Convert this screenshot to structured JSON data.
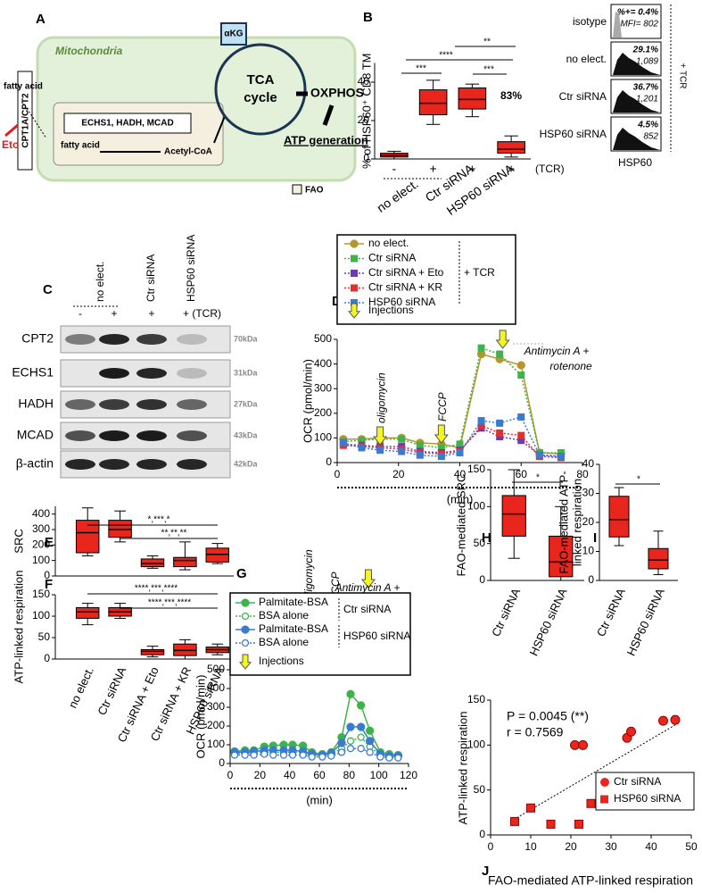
{
  "diagram_a": {
    "panel": "A",
    "compartment": "Mitochondria",
    "fatty_acid_outside": "fatty acid",
    "transporter": "CPT1A/CPT2",
    "inhibitor": "Eto",
    "enzymes": "ECHS1, HADH, MCAD",
    "fatty_acid_inside": "fatty acid",
    "product": "Acetyl-CoA",
    "intermediate": "αKG",
    "cycle": [
      "TCA",
      "cycle"
    ],
    "oxphos": "OXPHOS",
    "atp": "ATP generation",
    "legend": "FAO"
  },
  "flow_b": {
    "rows": [
      {
        "label": "isotype",
        "percent": "%+= 0.4%",
        "mfi": "MFI= 802"
      },
      {
        "label": "no elect.",
        "percent": "29.1%",
        "mfi": "1,089"
      },
      {
        "label": "Ctr siRNA",
        "percent": "36.7%",
        "mfi": "1,201"
      },
      {
        "label": "HSP60 siRNA",
        "percent": "4.5%",
        "mfi": "852"
      }
    ],
    "x_label": "HSP60",
    "condition": "+ TCR"
  },
  "blot_c": {
    "panel": "C",
    "columns": [
      "no elect.",
      "Ctr siRNA",
      "HSP60 siRNA"
    ],
    "treatments": [
      "-",
      "+",
      "+",
      "+ (TCR)"
    ],
    "rows": [
      {
        "protein": "CPT2",
        "size": "70kDa"
      },
      {
        "protein": "ECHS1",
        "size": "31kDa"
      },
      {
        "protein": "HADH",
        "size": "27kDa"
      },
      {
        "protein": "MCAD",
        "size": "43kDa"
      },
      {
        "protein": "β-actin",
        "size": "42kDa"
      }
    ]
  },
  "chart_data": [
    {
      "type": "box",
      "panel": "B",
      "y_label": "% of HSP60⁺ CD8 TM",
      "ylim": [
        0,
        50
      ],
      "yticks": [
        0,
        20,
        40
      ],
      "categories": [
        "-",
        "+",
        "+",
        "+"
      ],
      "category_note": "(TCR)",
      "group_labels": [
        "no elect.",
        "Ctr siRNA",
        "HSP60 siRNA"
      ],
      "color": "#e8261d",
      "boxes": [
        {
          "min": 0,
          "q1": 1,
          "median": 2,
          "q3": 3,
          "max": 4
        },
        {
          "min": 18,
          "q1": 23,
          "median": 29,
          "q3": 36,
          "max": 41
        },
        {
          "min": 22,
          "q1": 26,
          "median": 31,
          "q3": 37,
          "max": 39
        },
        {
          "min": 1,
          "q1": 3,
          "median": 5,
          "q3": 9,
          "max": 12
        }
      ],
      "annotations": [
        "***",
        "****",
        "**",
        "***",
        "83%"
      ]
    },
    {
      "type": "line",
      "panel": "D",
      "x_label": "(min)",
      "y_label": "OCR (pmol/min)",
      "xlim": [
        0,
        80
      ],
      "xticks": [
        0,
        20,
        40,
        60,
        80
      ],
      "ylim": [
        0,
        500
      ],
      "yticks": [
        0,
        100,
        200,
        300,
        400,
        500
      ],
      "x": [
        2,
        8,
        14,
        21,
        27,
        34,
        40,
        47,
        53,
        60,
        66,
        73
      ],
      "series": [
        {
          "name": "no elect.",
          "color": "#b8962e",
          "marker": "circle",
          "dash": "solid",
          "values": [
            95,
            95,
            100,
            100,
            80,
            75,
            60,
            440,
            420,
            395,
            40,
            35
          ]
        },
        {
          "name": "Ctr siRNA",
          "color": "#3cb44b",
          "marker": "square",
          "dash": "dotted",
          "values": [
            85,
            90,
            95,
            95,
            70,
            60,
            75,
            465,
            440,
            355,
            40,
            40
          ]
        },
        {
          "name": "Ctr siRNA + Eto",
          "color": "#6a3cb4",
          "marker": "square",
          "dash": "dotted",
          "values": [
            75,
            70,
            65,
            65,
            45,
            40,
            50,
            140,
            105,
            90,
            30,
            25
          ]
        },
        {
          "name": "Ctr siRNA + KR",
          "color": "#e03030",
          "marker": "square",
          "dash": "dotted",
          "values": [
            70,
            65,
            60,
            55,
            40,
            35,
            45,
            150,
            120,
            110,
            25,
            20
          ]
        },
        {
          "name": "HSP60 siRNA",
          "color": "#3a7ad0",
          "marker": "square",
          "dash": "dotted",
          "values": [
            80,
            60,
            50,
            45,
            30,
            25,
            40,
            170,
            160,
            185,
            30,
            25
          ]
        }
      ],
      "legend_note": "+ TCR",
      "injection_label": "Injections",
      "injections": [
        {
          "label": "oligomycin",
          "x": 14
        },
        {
          "label": "FCCP",
          "x": 34
        },
        {
          "label": [
            "Antimycin A +",
            "rotenone"
          ],
          "x": 54
        }
      ]
    },
    {
      "type": "box",
      "panel": "E",
      "y_label": "SRC",
      "ylim": [
        0,
        450
      ],
      "yticks": [
        0,
        100,
        200,
        300,
        400
      ],
      "color": "#e8261d",
      "boxes": [
        {
          "min": 130,
          "q1": 150,
          "median": 280,
          "q3": 360,
          "max": 440
        },
        {
          "min": 220,
          "q1": 250,
          "median": 300,
          "q3": 360,
          "max": 420
        },
        {
          "min": 50,
          "q1": 60,
          "median": 80,
          "q3": 110,
          "max": 130
        },
        {
          "min": 40,
          "q1": 60,
          "median": 100,
          "q3": 120,
          "max": 220
        },
        {
          "min": 80,
          "q1": 90,
          "median": 140,
          "q3": 180,
          "max": 210
        }
      ],
      "annotations": [
        "*,***,*",
        "**,**,**"
      ]
    },
    {
      "type": "box",
      "panel": "F",
      "y_label": "ATP-linked respiration",
      "ylim": [
        0,
        150
      ],
      "yticks": [
        0,
        50,
        100,
        150
      ],
      "categories": [
        "no elect.",
        "Ctr siRNA",
        "Ctr siRNA + Eto",
        "Ctr siRNA + KR",
        "HSP60 siRNA"
      ],
      "color": "#e8261d",
      "boxes": [
        {
          "min": 80,
          "q1": 95,
          "median": 110,
          "q3": 120,
          "max": 130
        },
        {
          "min": 95,
          "q1": 100,
          "median": 110,
          "q3": 120,
          "max": 130
        },
        {
          "min": 5,
          "q1": 10,
          "median": 18,
          "q3": 22,
          "max": 30
        },
        {
          "min": 0,
          "q1": 8,
          "median": 20,
          "q3": 35,
          "max": 45
        },
        {
          "min": 10,
          "q1": 15,
          "median": 22,
          "q3": 28,
          "max": 35
        }
      ],
      "annotations": [
        "****,***,****",
        "****,***,****"
      ]
    },
    {
      "type": "line",
      "panel": "G",
      "x_label": "(min)",
      "y_label": "OCR (pmol/min)",
      "xlim": [
        0,
        120
      ],
      "xticks": [
        0,
        20,
        40,
        60,
        80,
        100,
        120
      ],
      "ylim": [
        0,
        500
      ],
      "yticks": [
        0,
        100,
        200,
        300,
        400,
        500
      ],
      "x": [
        3,
        10,
        16,
        23,
        29,
        36,
        42,
        49,
        55,
        62,
        68,
        75,
        81,
        88,
        94,
        101,
        107,
        113
      ],
      "series": [
        {
          "name": "Palmitate-BSA",
          "color": "#3cb44b",
          "marker": "circle",
          "dash": "solid",
          "values": [
            65,
            70,
            70,
            90,
            95,
            100,
            100,
            95,
            60,
            50,
            60,
            140,
            370,
            310,
            175,
            60,
            50,
            45
          ]
        },
        {
          "name": "BSA alone",
          "color": "#3cb44b",
          "marker": "open-circle",
          "dash": "dotted",
          "values": [
            55,
            55,
            60,
            60,
            60,
            60,
            60,
            60,
            45,
            45,
            50,
            80,
            120,
            140,
            90,
            45,
            40,
            40
          ]
        },
        {
          "name": "Palmitate-BSA",
          "color": "#3a7ad0",
          "marker": "circle",
          "dash": "solid",
          "values": [
            60,
            60,
            65,
            70,
            70,
            70,
            70,
            65,
            50,
            45,
            55,
            110,
            195,
            195,
            120,
            50,
            40,
            40
          ]
        },
        {
          "name": "BSA alone",
          "color": "#3a7ad0",
          "marker": "open-circle",
          "dash": "dotted",
          "values": [
            45,
            45,
            45,
            50,
            45,
            45,
            45,
            45,
            35,
            35,
            40,
            60,
            80,
            80,
            60,
            35,
            30,
            30
          ]
        }
      ],
      "legend_groups": [
        "Ctr siRNA",
        "HSP60 siRNA"
      ],
      "injection_label": "Injections",
      "injections": [
        {
          "label": "oligomycin",
          "x": 52
        },
        {
          "label": "FCCP",
          "x": 70
        },
        {
          "label": [
            "Antimycin A +",
            "rotenone"
          ],
          "x": 93
        }
      ]
    },
    {
      "type": "box",
      "panel": "H",
      "y_label": "FAO-mediated SRC",
      "ylim": [
        0,
        150
      ],
      "yticks": [
        0,
        50,
        100,
        150
      ],
      "categories": [
        "Ctr siRNA",
        "HSP60 siRNA"
      ],
      "color": "#e8261d",
      "boxes": [
        {
          "min": 30,
          "q1": 60,
          "median": 90,
          "q3": 115,
          "max": 150
        },
        {
          "min": 0,
          "q1": 5,
          "median": 25,
          "q3": 60,
          "max": 100
        }
      ],
      "annotations": [
        "*"
      ]
    },
    {
      "type": "box",
      "panel": "I",
      "y_label": [
        "FAO-mediated ATP-",
        "linked respiration"
      ],
      "ylim": [
        0,
        40
      ],
      "yticks": [
        0,
        10,
        20,
        30,
        40
      ],
      "categories": [
        "Ctr siRNA",
        "HSP60 siRNA"
      ],
      "color": "#e8261d",
      "boxes": [
        {
          "min": 12,
          "q1": 15,
          "median": 21,
          "q3": 29,
          "max": 32
        },
        {
          "min": 2,
          "q1": 4,
          "median": 7,
          "q3": 11,
          "max": 17
        }
      ],
      "annotations": [
        "*"
      ]
    },
    {
      "type": "scatter",
      "panel": "J",
      "x_label": "FAO-mediated ATP-linked respiration",
      "y_label": "ATP-linked respiration",
      "xlim": [
        0,
        50
      ],
      "xticks": [
        0,
        10,
        20,
        30,
        40,
        50
      ],
      "ylim": [
        0,
        150
      ],
      "yticks": [
        0,
        50,
        100,
        150
      ],
      "series": [
        {
          "name": "Ctr siRNA",
          "marker": "circle",
          "color": "#e8261d",
          "x": [
            21,
            23,
            34,
            35,
            43,
            46
          ],
          "y": [
            100,
            100,
            108,
            115,
            127,
            128
          ]
        },
        {
          "name": "HSP60 siRNA",
          "marker": "square",
          "color": "#e8261d",
          "x": [
            6,
            10,
            15,
            22,
            25,
            32
          ],
          "y": [
            15,
            30,
            12,
            12,
            35,
            35
          ]
        }
      ],
      "fit_line": {
        "x": [
          5,
          47
        ],
        "y": [
          15,
          125
        ]
      },
      "annotations": [
        "P = 0.0045 (**)",
        "r = 0.7569"
      ]
    }
  ]
}
